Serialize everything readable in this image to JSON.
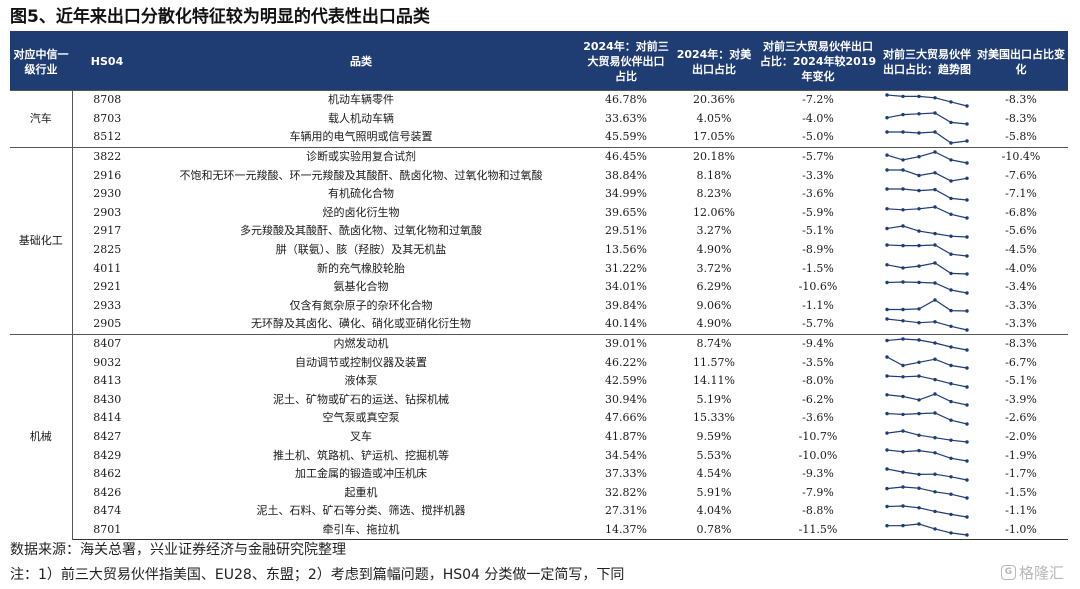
{
  "title": "图5、近年来出口分散化特征较为明显的代表性出口品类",
  "source": "数据来源：海关总署，兴业证券经济与金融研究院整理",
  "note": "注：1）前三大贸易伙伴指美国、EU28、东盟；2）考虑到篇幅问题，HS04 分类做一定简写，下同",
  "watermark": "格隆汇",
  "colors": {
    "header_bg": "#1f3c73",
    "header_text": "#ffffff",
    "spark_line": "#1f3c73"
  },
  "chart_data": {
    "type": "table",
    "headers": {
      "industry": "对应中信一级行业",
      "hs04": "HS04",
      "product": "品类",
      "share_big3_2024": "2024年：对前三大贸易伙伴出口占比",
      "share_us_2024": "2024年：对美出口占比",
      "change_vs_2019": "对前三大贸易伙伴出口占比：2024年较2019年变化",
      "trend": "对前三大贸易伙伴出口占比：趋势图",
      "us_change": "对美国出口占比变化"
    },
    "groups": [
      {
        "industry": "汽车",
        "rows": [
          {
            "hs": "8708",
            "product": "机动车辆零件",
            "share_big3": "46.78%",
            "share_us": "20.36%",
            "change": "-7.2%",
            "us_change": "-8.3%",
            "trend": [
              55,
              54,
              54,
              53,
              50,
              47
            ]
          },
          {
            "hs": "8703",
            "product": "载人机动车辆",
            "share_big3": "33.63%",
            "share_us": "4.05%",
            "change": "-4.0%",
            "us_change": "-8.3%",
            "trend": [
              37,
              39,
              39.5,
              40,
              34,
              33
            ]
          },
          {
            "hs": "8512",
            "product": "车辆用的电气照明或信号装置",
            "share_big3": "45.59%",
            "share_us": "17.05%",
            "change": "-5.0%",
            "us_change": "-5.8%",
            "trend": [
              50.5,
              50.5,
              50,
              50.5,
              45,
              46
            ]
          }
        ]
      },
      {
        "industry": "基础化工",
        "rows": [
          {
            "hs": "3822",
            "product": "诊断或实验用复合试剂",
            "share_big3": "46.45%",
            "share_us": "20.18%",
            "change": "-5.7%",
            "us_change": "-10.4%",
            "trend": [
              52,
              49,
              51,
              54,
              49,
              47
            ]
          },
          {
            "hs": "2916",
            "product": "不饱和无环一元羧酸、环一元羧酸及其酸酐、酰卤化物、过氧化物和过氧酸",
            "share_big3": "38.84%",
            "share_us": "8.18%",
            "change": "-3.3%",
            "us_change": "-7.6%",
            "trend": [
              42,
              42,
              40,
              41,
              38,
              39
            ]
          },
          {
            "hs": "2930",
            "product": "有机硫化合物",
            "share_big3": "34.99%",
            "share_us": "8.23%",
            "change": "-3.6%",
            "us_change": "-7.1%",
            "trend": [
              38.5,
              38.5,
              38,
              38.3,
              35.5,
              35
            ]
          },
          {
            "hs": "2903",
            "product": "烃的卤化衍生物",
            "share_big3": "39.65%",
            "share_us": "12.06%",
            "change": "-5.9%",
            "us_change": "-6.8%",
            "trend": [
              45,
              44.5,
              45,
              46,
              42,
              40
            ]
          },
          {
            "hs": "2917",
            "product": "多元羧酸及其酸酐、酰卤化物、过氧化物和过氧酸",
            "share_big3": "29.51%",
            "share_us": "3.27%",
            "change": "-5.1%",
            "us_change": "-5.6%",
            "trend": [
              34.5,
              36,
              33,
              31.5,
              30,
              29.5
            ]
          },
          {
            "hs": "2825",
            "product": "肼（联氨）、胲（羟胺）及其无机盐",
            "share_big3": "13.56%",
            "share_us": "4.90%",
            "change": "-8.9%",
            "us_change": "-4.5%",
            "trend": [
              22.5,
              22,
              22,
              22.5,
              15,
              13.5
            ]
          },
          {
            "hs": "4011",
            "product": "新的充气橡胶轮胎",
            "share_big3": "31.22%",
            "share_us": "3.72%",
            "change": "-1.5%",
            "us_change": "-4.0%",
            "trend": [
              32.7,
              32.2,
              32.5,
              33,
              31.3,
              31.2
            ]
          },
          {
            "hs": "2921",
            "product": "氨基化合物",
            "share_big3": "34.01%",
            "share_us": "6.29%",
            "change": "-10.6%",
            "us_change": "-3.4%",
            "trend": [
              44.5,
              45,
              44.6,
              44,
              37,
              34
            ]
          },
          {
            "hs": "2933",
            "product": "仅含有氮杂原子的杂环化合物",
            "share_big3": "39.84%",
            "share_us": "9.06%",
            "change": "-1.1%",
            "us_change": "-3.3%",
            "trend": [
              40.5,
              40.5,
              40.8,
              45,
              40,
              39.8
            ]
          },
          {
            "hs": "2905",
            "product": "无环醇及其卤化、磺化、硝化或亚硝化衍生物",
            "share_big3": "40.14%",
            "share_us": "4.90%",
            "change": "-5.7%",
            "us_change": "-3.3%",
            "trend": [
              46,
              45,
              44,
              44.5,
              42,
              40
            ]
          }
        ]
      },
      {
        "industry": "机械",
        "rows": [
          {
            "hs": "8407",
            "product": "内燃发动机",
            "share_big3": "39.01%",
            "share_us": "8.74%",
            "change": "-9.4%",
            "us_change": "-8.3%",
            "trend": [
              48.5,
              50,
              49,
              46,
              42,
              39
            ]
          },
          {
            "hs": "9032",
            "product": "自动调节或控制仪器及装置",
            "share_big3": "46.22%",
            "share_us": "11.57%",
            "change": "-3.5%",
            "us_change": "-6.7%",
            "trend": [
              49.7,
              47,
              48,
              49,
              47,
              46.2
            ]
          },
          {
            "hs": "8413",
            "product": "液体泵",
            "share_big3": "42.59%",
            "share_us": "14.11%",
            "change": "-8.0%",
            "us_change": "-5.1%",
            "trend": [
              50.6,
              50,
              50.5,
              48,
              45,
              42.6
            ]
          },
          {
            "hs": "8430",
            "product": "泥土、矿物或矿石的运送、钻探机械",
            "share_big3": "30.94%",
            "share_us": "5.19%",
            "change": "-6.2%",
            "us_change": "-3.9%",
            "trend": [
              37,
              36,
              34,
              37.5,
              33,
              31
            ]
          },
          {
            "hs": "8414",
            "product": "空气泵或真空泵",
            "share_big3": "47.66%",
            "share_us": "15.33%",
            "change": "-3.6%",
            "us_change": "-2.6%",
            "trend": [
              51.3,
              51,
              51.3,
              51.5,
              49,
              47.7
            ]
          },
          {
            "hs": "8427",
            "product": "叉车",
            "share_big3": "41.87%",
            "share_us": "9.59%",
            "change": "-10.7%",
            "us_change": "-2.0%",
            "trend": [
              52.5,
              55,
              50,
              47,
              44,
              41.9
            ]
          },
          {
            "hs": "8429",
            "product": "推土机、筑路机、铲运机、挖掘机等",
            "share_big3": "34.54%",
            "share_us": "5.53%",
            "change": "-10.0%",
            "us_change": "-1.9%",
            "trend": [
              44.5,
              43,
              44,
              42,
              37,
              34.5
            ]
          },
          {
            "hs": "8462",
            "product": "加工金属的锻造或冲压机床",
            "share_big3": "37.33%",
            "share_us": "4.54%",
            "change": "-9.3%",
            "us_change": "-1.7%",
            "trend": [
              46.6,
              44,
              42,
              42.2,
              40,
              37.3
            ]
          },
          {
            "hs": "8426",
            "product": "起重机",
            "share_big3": "32.82%",
            "share_us": "5.91%",
            "change": "-7.9%",
            "us_change": "-1.5%",
            "trend": [
              40.7,
              42,
              41,
              38,
              36,
              32.8
            ]
          },
          {
            "hs": "8474",
            "product": "泥土、石料、矿石等分类、筛选、搅拌机器",
            "share_big3": "27.31%",
            "share_us": "4.04%",
            "change": "-8.8%",
            "us_change": "-1.1%",
            "trend": [
              36.1,
              36.5,
              35,
              32,
              29.5,
              27.3
            ]
          },
          {
            "hs": "8701",
            "product": "牵引车、拖拉机",
            "share_big3": "14.37%",
            "share_us": "0.78%",
            "change": "-11.5%",
            "us_change": "-1.0%",
            "trend": [
              25.9,
              26,
              28,
              22,
              17,
              14.4
            ]
          }
        ]
      }
    ]
  }
}
